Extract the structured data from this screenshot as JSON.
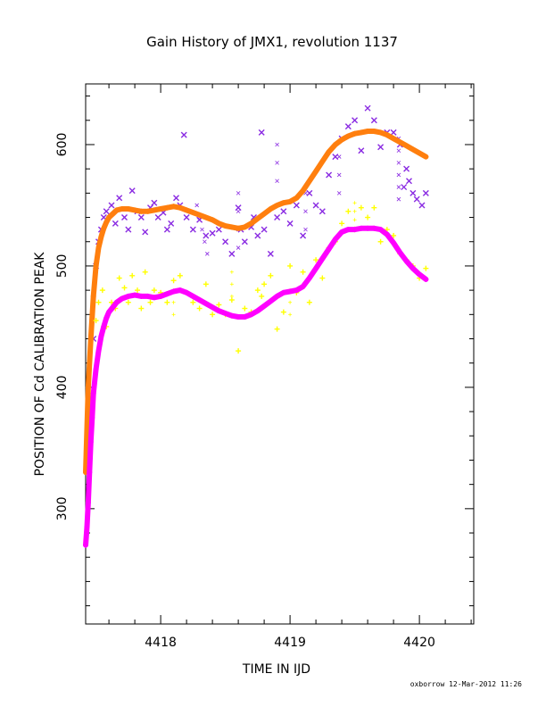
{
  "footer": "oxborrow 12-Mar-2012 11:26",
  "colors": {
    "purple": "#8a2be2",
    "orange": "#ff7f0e",
    "yellow": "#ffff00",
    "magenta": "#ff00ff",
    "axis": "#000000"
  },
  "chart_data": {
    "type": "scatter",
    "title": "Gain History of JMX1, revolution 1137",
    "xlabel": "TIME IN IJD",
    "ylabel": "POSITION OF Cd CALIBRATION PEAK",
    "xlim": [
      4417.42,
      4420.42
    ],
    "ylim": [
      205,
      650
    ],
    "x_ticks": [
      4418,
      4419,
      4420
    ],
    "y_ticks": [
      300,
      400,
      500,
      600
    ],
    "grid": false,
    "series": [
      {
        "marker": "x",
        "color": "purple",
        "x": [
          4417.48,
          4417.5,
          4417.52,
          4417.54,
          4417.56,
          4417.58,
          4417.62,
          4417.65,
          4417.68,
          4417.72,
          4417.75,
          4417.78,
          4417.82,
          4417.85,
          4417.88,
          4417.92,
          4417.95,
          4417.98,
          4418.02,
          4418.05,
          4418.08,
          4418.12,
          4418.15,
          4418.18,
          4418.2,
          4418.25,
          4418.3,
          4418.35,
          4418.4,
          4418.45,
          4418.5,
          4418.55,
          4418.6,
          4418.62,
          4418.65,
          4418.7,
          4418.72,
          4418.75,
          4418.78,
          4418.8,
          4418.85,
          4418.9,
          4418.95,
          4419.0,
          4419.05,
          4419.1,
          4419.15,
          4419.2,
          4419.25,
          4419.3,
          4419.35,
          4419.4,
          4419.45,
          4419.5,
          4419.55,
          4419.6,
          4419.65,
          4419.7,
          4419.75,
          4419.8,
          4419.85,
          4419.88,
          4419.9,
          4419.92,
          4419.95,
          4419.98,
          4420.02,
          4420.05
        ],
        "y": [
          440,
          500,
          520,
          530,
          540,
          545,
          550,
          535,
          556,
          540,
          530,
          562,
          545,
          540,
          528,
          548,
          552,
          540,
          544,
          530,
          535,
          556,
          550,
          608,
          540,
          530,
          538,
          525,
          527,
          530,
          520,
          510,
          548,
          530,
          520,
          532,
          540,
          525,
          610,
          530,
          510,
          540,
          545,
          535,
          550,
          525,
          560,
          550,
          545,
          575,
          590,
          605,
          615,
          620,
          595,
          630,
          620,
          598,
          610,
          610,
          600,
          565,
          580,
          570,
          560,
          555,
          550,
          560
        ],
        "x2": [
          4418.28,
          4418.3,
          4418.32,
          4418.34,
          4418.36,
          4418.6,
          4418.6,
          4418.6,
          4418.6,
          4418.9,
          4418.9,
          4418.9,
          4419.12,
          4419.12,
          4419.12,
          4419.38,
          4419.38,
          4419.38,
          4419.84,
          4419.84,
          4419.84,
          4419.84,
          4419.84,
          4419.84
        ],
        "y2": [
          550,
          540,
          530,
          520,
          510,
          560,
          545,
          530,
          515,
          600,
          585,
          570,
          560,
          545,
          530,
          590,
          575,
          560,
          605,
          595,
          585,
          575,
          565,
          555
        ]
      },
      {
        "marker": "+",
        "color": "orange",
        "fit": true,
        "x": [
          4417.42,
          4417.44,
          4417.46,
          4417.48,
          4417.5,
          4417.52,
          4417.54,
          4417.56,
          4417.58,
          4417.6,
          4417.63,
          4417.66,
          4417.7,
          4417.75,
          4417.8,
          4417.85,
          4417.9,
          4417.95,
          4418.0,
          4418.05,
          4418.1,
          4418.15,
          4418.2,
          4418.25,
          4418.3,
          4418.35,
          4418.4,
          4418.45,
          4418.5,
          4418.55,
          4418.6,
          4418.65,
          4418.7,
          4418.75,
          4418.8,
          4418.85,
          4418.9,
          4418.95,
          4419.0,
          4419.05,
          4419.1,
          4419.15,
          4419.2,
          4419.25,
          4419.3,
          4419.35,
          4419.4,
          4419.45,
          4419.5,
          4419.55,
          4419.6,
          4419.65,
          4419.7,
          4419.75,
          4419.8,
          4419.85,
          4419.9,
          4419.95,
          4420.0,
          4420.05
        ],
        "y": [
          330,
          400,
          440,
          475,
          500,
          515,
          524,
          531,
          536,
          540,
          543,
          546,
          547,
          547,
          546,
          545,
          545,
          546,
          547,
          548,
          549,
          548,
          546,
          544,
          542,
          540,
          538,
          535,
          533,
          532,
          531,
          532,
          535,
          539,
          543,
          547,
          550,
          552,
          553,
          556,
          562,
          570,
          578,
          586,
          594,
          600,
          604,
          607,
          609,
          610,
          611,
          611,
          610,
          608,
          605,
          602,
          599,
          596,
          593,
          590
        ]
      },
      {
        "marker": "+",
        "color": "yellow",
        "x": [
          4417.5,
          4417.52,
          4417.55,
          4417.58,
          4417.62,
          4417.65,
          4417.68,
          4417.72,
          4417.75,
          4417.78,
          4417.82,
          4417.85,
          4417.88,
          4417.92,
          4417.95,
          4418.0,
          4418.05,
          4418.1,
          4418.15,
          4418.2,
          4418.25,
          4418.3,
          4418.35,
          4418.4,
          4418.45,
          4418.5,
          4418.55,
          4418.6,
          4418.65,
          4418.7,
          4418.75,
          4418.78,
          4418.8,
          4418.85,
          4418.9,
          4418.95,
          4419.0,
          4419.05,
          4419.1,
          4419.15,
          4419.2,
          4419.25,
          4419.3,
          4419.35,
          4419.4,
          4419.45,
          4419.5,
          4419.55,
          4419.6,
          4419.65,
          4419.7,
          4419.75,
          4419.8,
          4419.85,
          4419.9,
          4419.95,
          4420.0,
          4420.05
        ],
        "y": [
          455,
          470,
          480,
          450,
          470,
          465,
          490,
          482,
          470,
          492,
          480,
          465,
          495,
          470,
          480,
          478,
          470,
          488,
          492,
          478,
          470,
          465,
          485,
          460,
          468,
          460,
          472,
          430,
          465,
          462,
          480,
          475,
          485,
          492,
          448,
          462,
          500,
          478,
          495,
          470,
          505,
          490,
          515,
          520,
          535,
          545,
          530,
          548,
          540,
          548,
          520,
          530,
          525,
          510,
          505,
          500,
          490,
          498
        ],
        "x2": [
          4418.1,
          4418.1,
          4418.1,
          4418.55,
          4418.55,
          4418.55,
          4419.0,
          4419.0,
          4419.0,
          4419.5,
          4419.5,
          4419.5,
          4419.5
        ],
        "y2": [
          480,
          470,
          460,
          495,
          485,
          475,
          480,
          470,
          460,
          552,
          545,
          538,
          531
        ]
      },
      {
        "marker": "+",
        "color": "magenta",
        "fit": true,
        "x": [
          4417.42,
          4417.43,
          4417.44,
          4417.45,
          4417.46,
          4417.47,
          4417.48,
          4417.5,
          4417.52,
          4417.54,
          4417.56,
          4417.58,
          4417.6,
          4417.63,
          4417.66,
          4417.7,
          4417.75,
          4417.8,
          4417.85,
          4417.9,
          4417.95,
          4418.0,
          4418.05,
          4418.1,
          4418.15,
          4418.2,
          4418.25,
          4418.3,
          4418.35,
          4418.4,
          4418.45,
          4418.5,
          4418.55,
          4418.6,
          4418.65,
          4418.7,
          4418.75,
          4418.8,
          4418.85,
          4418.9,
          4418.95,
          4419.0,
          4419.05,
          4419.1,
          4419.15,
          4419.2,
          4419.25,
          4419.3,
          4419.35,
          4419.4,
          4419.45,
          4419.5,
          4419.55,
          4419.6,
          4419.65,
          4419.7,
          4419.75,
          4419.8,
          4419.85,
          4419.9,
          4419.95,
          4420.0,
          4420.05
        ],
        "y": [
          270,
          285,
          305,
          330,
          355,
          375,
          395,
          415,
          430,
          442,
          450,
          457,
          462,
          466,
          470,
          473,
          475,
          476,
          475,
          475,
          474,
          475,
          477,
          479,
          480,
          478,
          475,
          472,
          469,
          466,
          463,
          461,
          459,
          458,
          458,
          460,
          463,
          467,
          471,
          475,
          478,
          479,
          480,
          483,
          490,
          498,
          506,
          514,
          522,
          528,
          530,
          530,
          531,
          531,
          531,
          530,
          526,
          519,
          511,
          504,
          498,
          493,
          489
        ]
      }
    ]
  }
}
